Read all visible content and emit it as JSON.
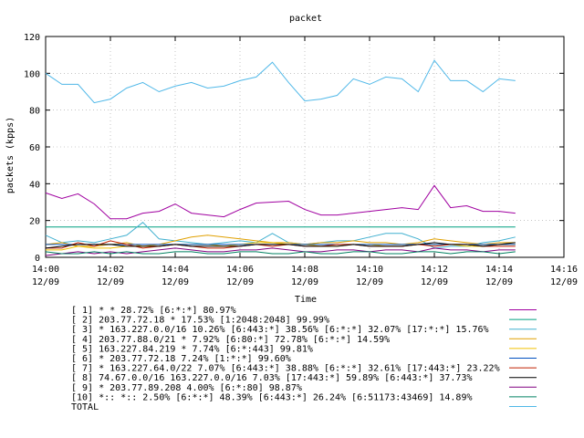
{
  "chart_data": {
    "type": "line",
    "title": "packet",
    "xlabel": "Time",
    "ylabel": "packets (kpps)",
    "xlim": [
      0,
      16
    ],
    "ylim": [
      0,
      120
    ],
    "yticks": [
      0,
      20,
      40,
      60,
      80,
      100,
      120
    ],
    "xticks": [
      {
        "t": 0,
        "time": "14:00",
        "date": "12/09"
      },
      {
        "t": 2,
        "time": "14:02",
        "date": "12/09"
      },
      {
        "t": 4,
        "time": "14:04",
        "date": "12/09"
      },
      {
        "t": 6,
        "time": "14:06",
        "date": "12/09"
      },
      {
        "t": 8,
        "time": "14:08",
        "date": "12/09"
      },
      {
        "t": 10,
        "time": "14:10",
        "date": "12/09"
      },
      {
        "t": 12,
        "time": "14:12",
        "date": "12/09"
      },
      {
        "t": 14,
        "time": "14:14",
        "date": "12/09"
      },
      {
        "t": 16,
        "time": "14:16",
        "date": "12/09"
      }
    ],
    "x": [
      0,
      0.5,
      1,
      1.5,
      2,
      2.5,
      3,
      3.5,
      4,
      4.5,
      5,
      5.5,
      6,
      6.5,
      7,
      7.5,
      8,
      8.5,
      9,
      9.5,
      10,
      10.5,
      11,
      11.5,
      12,
      12.5,
      13,
      13.5,
      14,
      14.5
    ],
    "series": [
      {
        "name": "[ 1] * * 28.72%  [6:*:*] 80.97%",
        "color": "#a000a0",
        "values": [
          35,
          32,
          34.5,
          29,
          21,
          21,
          24,
          25,
          29,
          24,
          23,
          22,
          26,
          29.5,
          30,
          30.5,
          26,
          23,
          23,
          24,
          25,
          26,
          27,
          26,
          39,
          27,
          28,
          25,
          25,
          24
        ]
      },
      {
        "name": "[ 2] 203.77.72.18 * 17.53%  [1:2048:2048] 99.99%",
        "color": "#00a080",
        "values": [
          16.5,
          16.5,
          16.5,
          16.5,
          16.5,
          16.5,
          16.5,
          16.5,
          16.5,
          16.5,
          16.5,
          16.5,
          16.5,
          16.5,
          16.5,
          16.5,
          16.5,
          16.5,
          16.5,
          16.5,
          16.5,
          16.5,
          16.5,
          16.5,
          16.5,
          16.5,
          16.5,
          16.5,
          16.5,
          16.5
        ]
      },
      {
        "name": "[ 3] * 163.227.0.0/16 10.26%  [6:443:*] 38.56% [6:*:*] 32.07% [17:*:*] 15.76%",
        "color": "#40b0d0",
        "values": [
          12,
          8,
          9,
          8,
          10,
          12,
          19,
          10,
          9,
          8,
          7,
          8,
          9,
          8,
          13,
          8,
          7,
          8,
          9,
          9,
          11,
          13,
          13,
          10,
          5,
          6,
          6,
          8,
          9,
          11
        ]
      },
      {
        "name": "[ 4] 203.77.88.0/21 * 7.92%  [6:80:*] 72.78% [6:*:*] 14.59%",
        "color": "#e0a000",
        "values": [
          7,
          8,
          6,
          6,
          7,
          8,
          6,
          7,
          9,
          11,
          12,
          11,
          10,
          9,
          8,
          8,
          7,
          8,
          8,
          9,
          8,
          8,
          7,
          8,
          10,
          9,
          8,
          7,
          8,
          8
        ]
      },
      {
        "name": "[ 5] 163.227.84.219 * 7.74%  [6:*:443] 99.81%",
        "color": "#f0c000",
        "values": [
          4,
          4,
          6,
          5,
          5,
          6,
          6,
          6,
          7,
          7,
          7,
          6,
          7,
          8,
          8,
          7,
          7,
          6,
          6,
          7,
          7,
          6,
          6,
          7,
          7,
          7,
          6,
          6,
          7,
          7
        ]
      },
      {
        "name": "[ 6] * 203.77.72.18 7.24%  [1:*:*] 99.60%",
        "color": "#0050c0",
        "values": [
          7,
          7,
          7,
          7,
          7,
          7,
          7,
          7,
          7,
          7,
          7,
          7,
          7,
          7,
          7,
          7,
          7,
          7,
          7,
          7,
          7,
          7,
          7,
          7,
          7,
          7,
          7,
          7,
          7,
          7
        ]
      },
      {
        "name": "[ 7] * 163.227.64.0/22 7.07%  [6:443:*] 38.88% [6:*:*] 32.61% [17:443:*] 23.22%",
        "color": "#c02000",
        "values": [
          5,
          5,
          8,
          6,
          9,
          7,
          5,
          6,
          7,
          6,
          5,
          5,
          6,
          7,
          6,
          7,
          6,
          6,
          7,
          7,
          6,
          6,
          6,
          7,
          6,
          7,
          7,
          6,
          6,
          6
        ]
      },
      {
        "name": "[ 8] 74.67.0.0/16 163.227.0.0/16 7.03%  [17:443:*] 59.89% [6:443:*] 37.73%",
        "color": "#000000",
        "values": [
          5,
          6,
          7,
          7,
          7,
          6,
          6,
          6,
          7,
          6,
          6,
          6,
          6,
          7,
          7,
          7,
          6,
          6,
          6,
          7,
          6,
          6,
          6,
          7,
          8,
          7,
          7,
          6,
          7,
          8
        ]
      },
      {
        "name": "[ 9] * 203.77.89.208 4.00%  [6:*:80] 98.87%",
        "color": "#800080",
        "values": [
          1,
          2,
          3,
          2,
          3,
          2,
          3,
          4,
          5,
          4,
          3,
          3,
          4,
          4,
          5,
          4,
          3,
          3,
          4,
          4,
          3,
          4,
          4,
          3,
          5,
          4,
          4,
          3,
          4,
          4
        ]
      },
      {
        "name": "[10] *:: *:: 2.50%  [6:*:*] 48.39% [6:443:*] 26.24% [6:51173:43469] 14.89%",
        "color": "#008060",
        "values": [
          3,
          2,
          2,
          3,
          2,
          3,
          2,
          2,
          3,
          3,
          2,
          2,
          3,
          3,
          2,
          2,
          3,
          2,
          2,
          3,
          3,
          2,
          2,
          3,
          3,
          2,
          3,
          3,
          2,
          3
        ]
      },
      {
        "name": "TOTAL",
        "color": "#50b8e8",
        "values": [
          100,
          94,
          94,
          84,
          86,
          92,
          95,
          90,
          93,
          95,
          92,
          93,
          96,
          98,
          106,
          95,
          85,
          86,
          88,
          97,
          94,
          98,
          97,
          90,
          107,
          96,
          96,
          90,
          97,
          96
        ]
      }
    ]
  }
}
